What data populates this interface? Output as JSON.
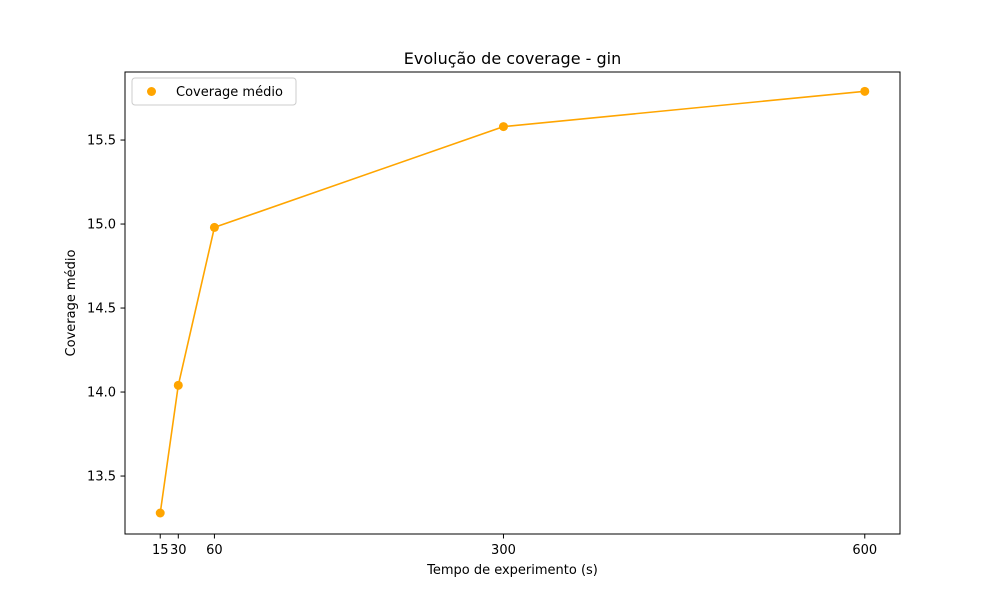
{
  "chart_data": {
    "type": "line",
    "title": "Evolução de coverage - gin",
    "xlabel": "Tempo de experimento (s)",
    "ylabel": "Coverage médio",
    "x": [
      15,
      30,
      60,
      300,
      600
    ],
    "x_tick_labels": [
      "15",
      "30",
      "60",
      "300",
      "600"
    ],
    "y_ticks": [
      13.5,
      14.0,
      14.5,
      15.0,
      15.5
    ],
    "y_tick_labels": [
      "13.5",
      "14.0",
      "14.5",
      "15.0",
      "15.5"
    ],
    "xlim": [
      -14.25,
      629.25
    ],
    "ylim": [
      13.155,
      15.905
    ],
    "series": [
      {
        "name": "Coverage médio",
        "values": [
          13.28,
          14.04,
          14.98,
          15.58,
          15.79
        ],
        "color": "#ffa500",
        "marker": "circle"
      }
    ],
    "legend": {
      "position": "top-left",
      "labels": [
        "Coverage médio"
      ]
    },
    "grid": false
  }
}
